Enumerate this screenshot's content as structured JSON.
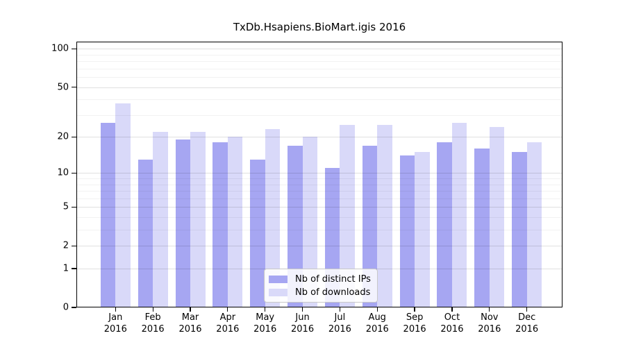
{
  "chart_data": {
    "type": "bar",
    "title": "TxDb.Hsapiens.BioMart.igis 2016",
    "categories": [
      "Jan",
      "Feb",
      "Mar",
      "Apr",
      "May",
      "Jun",
      "Jul",
      "Aug",
      "Sep",
      "Oct",
      "Nov",
      "Dec"
    ],
    "x_year_label": "2016",
    "series": [
      {
        "name": "Nb of distinct IPs",
        "color": "#a6a6f2",
        "values": [
          26,
          13,
          19,
          18,
          13,
          17,
          11,
          17,
          14,
          18,
          16,
          15
        ]
      },
      {
        "name": "Nb of downloads",
        "color": "#d9d9f9",
        "values": [
          37,
          22,
          22,
          20,
          23,
          20,
          25,
          25,
          15,
          26,
          24,
          18
        ]
      }
    ],
    "y_scale": "log1p",
    "y_ticks": [
      0,
      1,
      2,
      5,
      10,
      20,
      50,
      100
    ],
    "y_minor_gridlines": [
      3,
      4,
      6,
      7,
      8,
      9,
      30,
      40,
      60,
      70,
      80,
      90
    ],
    "ylim": [
      0,
      114
    ],
    "grid": true,
    "legend_position": "bottom-center",
    "colors": {
      "axis": "#000000",
      "background": "#ffffff"
    }
  }
}
